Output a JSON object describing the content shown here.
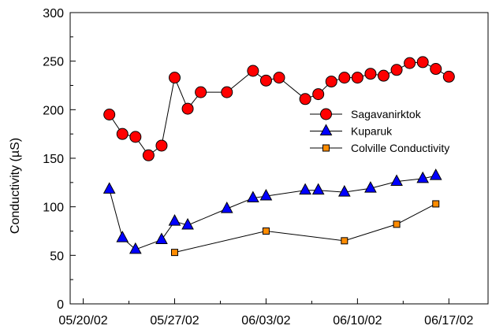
{
  "chart_data": {
    "type": "scatter",
    "ylabel": "Conductivity (µS)",
    "xlabel": "",
    "title": "",
    "x_ticks": [
      "05/20/02",
      "05/27/02",
      "06/03/02",
      "06/10/02",
      "06/17/02"
    ],
    "y_ticks": [
      "0",
      "50",
      "100",
      "150",
      "200",
      "250",
      "300"
    ],
    "xlim": [
      "2002-05-19",
      "2002-06-20"
    ],
    "ylim": [
      0,
      300
    ],
    "grid": false,
    "legend_position": "center-right",
    "series": [
      {
        "name": "Sagavanirktok",
        "marker": "circle",
        "color": "#ff0000",
        "x": [
          "2002-05-22",
          "2002-05-23",
          "2002-05-24",
          "2002-05-25",
          "2002-05-26",
          "2002-05-27",
          "2002-05-28",
          "2002-05-29",
          "2002-05-31",
          "2002-06-02",
          "2002-06-03",
          "2002-06-04",
          "2002-06-06",
          "2002-06-07",
          "2002-06-08",
          "2002-06-09",
          "2002-06-10",
          "2002-06-11",
          "2002-06-12",
          "2002-06-13",
          "2002-06-14",
          "2002-06-15",
          "2002-06-16",
          "2002-06-17"
        ],
        "y": [
          195,
          175,
          172,
          153,
          163,
          233,
          201,
          218,
          218,
          240,
          230,
          233,
          211,
          216,
          229,
          233,
          233,
          237,
          235,
          241,
          248,
          249,
          242,
          234
        ]
      },
      {
        "name": "Kuparuk",
        "marker": "triangle",
        "color": "#0000ff",
        "x": [
          "2002-05-22",
          "2002-05-23",
          "2002-05-24",
          "2002-05-26",
          "2002-05-27",
          "2002-05-28",
          "2002-05-31",
          "2002-06-02",
          "2002-06-03",
          "2002-06-06",
          "2002-06-07",
          "2002-06-09",
          "2002-06-11",
          "2002-06-13",
          "2002-06-15",
          "2002-06-16"
        ],
        "y": [
          118,
          68,
          56,
          66,
          85,
          81,
          98,
          109,
          111,
          117,
          117,
          115,
          119,
          126,
          129,
          132
        ]
      },
      {
        "name": "Colville Conductivity",
        "marker": "square",
        "color": "#ff8c00",
        "x": [
          "2002-05-27",
          "2002-06-03",
          "2002-06-09",
          "2002-06-13",
          "2002-06-16"
        ],
        "y": [
          53,
          75,
          65,
          82,
          103
        ]
      }
    ]
  }
}
